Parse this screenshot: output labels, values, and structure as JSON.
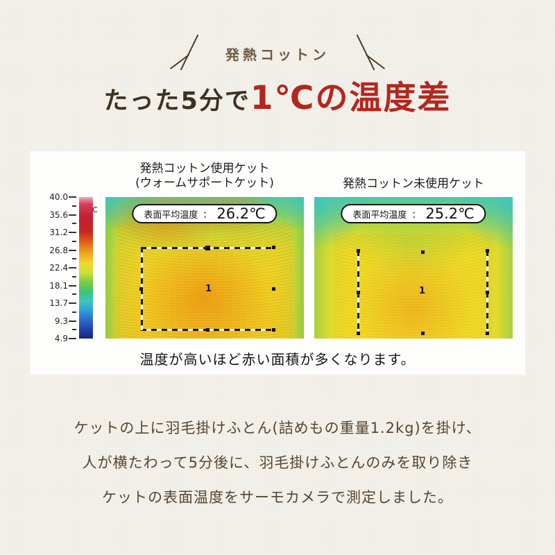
{
  "colors": {
    "background": "#f2efe9",
    "panel": "#fdfdfb",
    "accent_red": "#b3271e",
    "title_brown": "#3e3122",
    "eyebrow_brown": "#6e5b41",
    "footnote_brown": "#56452f"
  },
  "header": {
    "eyebrow": "発熱コットン",
    "title_prefix": "たった5分で",
    "title_highlight": "1℃の温度差"
  },
  "comparison": {
    "scale": {
      "unit": "℃",
      "ticks": [
        "40.0",
        "35.6",
        "31.2",
        "26.8",
        "22.4",
        "18.1",
        "13.7",
        "9.3",
        "4.9"
      ]
    },
    "left": {
      "title_line1": "発熱コットン使用ケット",
      "title_line2": "(ウォームサポートケット)",
      "pill_label": "表面平均温度",
      "pill_colon": "：",
      "pill_value": "26.2℃",
      "marker": "1"
    },
    "right": {
      "title_line1": "発熱コットン未使用ケット",
      "pill_label": "表面平均温度",
      "pill_colon": "：",
      "pill_value": "25.2℃",
      "marker": "1"
    },
    "caption": "温度が高いほど赤い面積が多くなります。"
  },
  "footnote": {
    "line1": "ケットの上に羽毛掛けふとん(詰めもの重量1.2kg)を掛け、",
    "line2": "人が横たわって5分後に、羽毛掛けふとんのみを取り除き",
    "line3": "ケットの表面温度をサーモカメラで測定しました。"
  }
}
